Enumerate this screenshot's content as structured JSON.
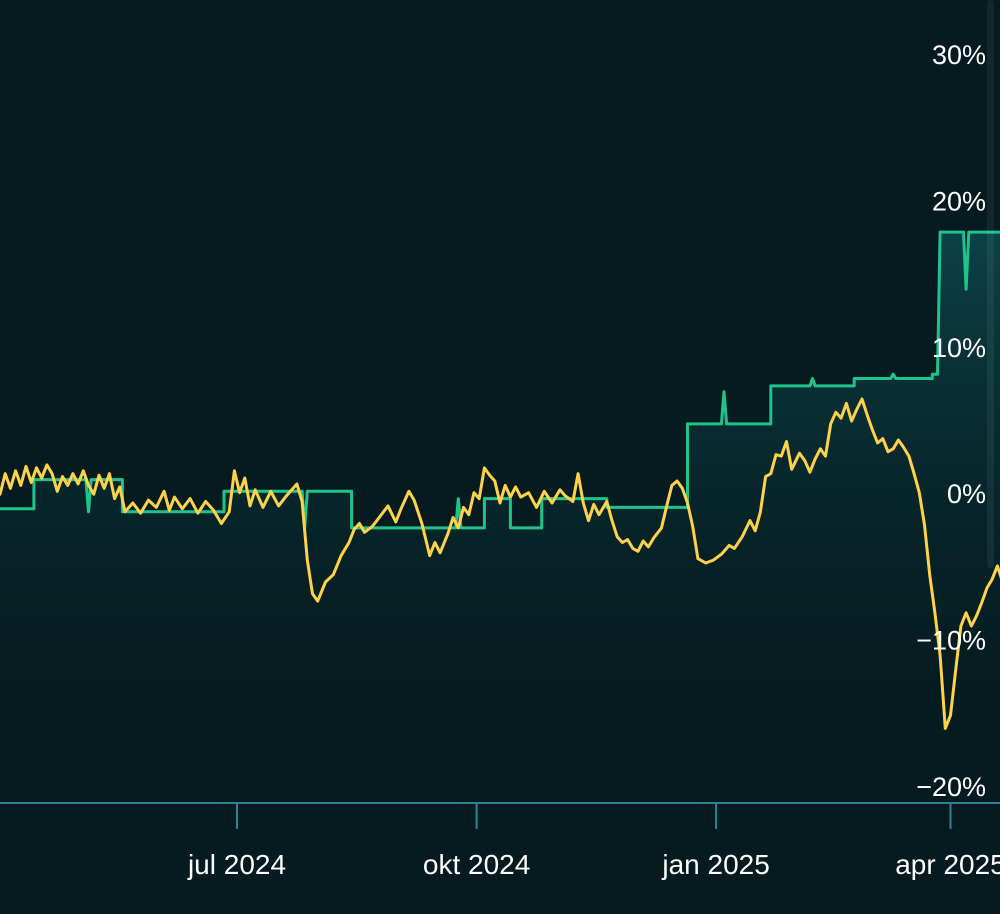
{
  "chart_data": {
    "type": "line",
    "title": "",
    "xlabel": "",
    "ylabel": "",
    "x_range": [
      "2024-04-01",
      "2025-04-20"
    ],
    "ylim": [
      -20,
      30
    ],
    "yticks": [
      30,
      20,
      10,
      0,
      -10,
      -20
    ],
    "ytick_labels": [
      "30%",
      "20%",
      "10%",
      "0%",
      "−10%",
      "−20%"
    ],
    "xticks": [
      "2024-07-01",
      "2024-10-01",
      "2025-01-01",
      "2025-04-01"
    ],
    "xtick_labels": [
      "jul 2024",
      "okt 2024",
      "jan 2025",
      "apr 2025"
    ],
    "grid": false,
    "legend": "none",
    "series": [
      {
        "color": "#1fc48a",
        "shape": "step",
        "fill": true,
        "points": [
          [
            "2024-04-01",
            -1.0
          ],
          [
            "2024-04-14",
            -1.0
          ],
          [
            "2024-04-14",
            1.0
          ],
          [
            "2024-05-04",
            1.0
          ],
          [
            "2024-05-05",
            -1.2
          ],
          [
            "2024-05-06",
            1.0
          ],
          [
            "2024-05-18",
            1.0
          ],
          [
            "2024-05-18",
            -1.2
          ],
          [
            "2024-06-26",
            -1.2
          ],
          [
            "2024-06-26",
            0.2
          ],
          [
            "2024-07-26",
            0.2
          ],
          [
            "2024-07-27",
            -2.3
          ],
          [
            "2024-07-28",
            0.2
          ],
          [
            "2024-08-14",
            0.2
          ],
          [
            "2024-08-14",
            -2.3
          ],
          [
            "2024-09-23",
            -2.3
          ],
          [
            "2024-09-24",
            -0.3
          ],
          [
            "2024-09-25",
            -2.3
          ],
          [
            "2024-10-04",
            -2.3
          ],
          [
            "2024-10-04",
            -0.3
          ],
          [
            "2024-10-14",
            -0.3
          ],
          [
            "2024-10-14",
            -2.3
          ],
          [
            "2024-10-26",
            -2.3
          ],
          [
            "2024-10-26",
            -0.3
          ],
          [
            "2024-11-20",
            -0.3
          ],
          [
            "2024-11-20",
            -0.9
          ],
          [
            "2024-12-21",
            -0.9
          ],
          [
            "2024-12-21",
            4.8
          ],
          [
            "2025-01-03",
            4.8
          ],
          [
            "2025-01-04",
            7.0
          ],
          [
            "2025-01-05",
            4.8
          ],
          [
            "2025-01-22",
            4.8
          ],
          [
            "2025-01-22",
            7.4
          ],
          [
            "2025-02-06",
            7.4
          ],
          [
            "2025-02-07",
            7.9
          ],
          [
            "2025-02-08",
            7.4
          ],
          [
            "2025-02-23",
            7.4
          ],
          [
            "2025-02-23",
            7.9
          ],
          [
            "2025-03-09",
            7.9
          ],
          [
            "2025-03-10",
            8.2
          ],
          [
            "2025-03-11",
            7.9
          ],
          [
            "2025-03-25",
            7.9
          ],
          [
            "2025-03-25",
            8.2
          ],
          [
            "2025-03-27",
            8.2
          ],
          [
            "2025-03-28",
            17.9
          ],
          [
            "2025-04-06",
            17.9
          ],
          [
            "2025-04-07",
            14.0
          ],
          [
            "2025-04-08",
            17.9
          ],
          [
            "2025-04-24",
            17.9
          ],
          [
            "2025-04-24",
            14.0
          ],
          [
            "2025-05-24",
            14.0
          ]
        ]
      },
      {
        "color": "#ffd24a",
        "shape": "line",
        "fill": false,
        "points": [
          [
            "2024-04-01",
            0.0
          ],
          [
            "2024-04-03",
            1.4
          ],
          [
            "2024-04-05",
            0.4
          ],
          [
            "2024-04-07",
            1.6
          ],
          [
            "2024-04-09",
            0.6
          ],
          [
            "2024-04-11",
            1.9
          ],
          [
            "2024-04-13",
            0.8
          ],
          [
            "2024-04-15",
            1.8
          ],
          [
            "2024-04-17",
            1.1
          ],
          [
            "2024-04-19",
            2.0
          ],
          [
            "2024-04-21",
            1.4
          ],
          [
            "2024-04-23",
            0.2
          ],
          [
            "2024-04-25",
            1.2
          ],
          [
            "2024-04-27",
            0.6
          ],
          [
            "2024-04-29",
            1.4
          ],
          [
            "2024-05-01",
            0.7
          ],
          [
            "2024-05-03",
            1.6
          ],
          [
            "2024-05-05",
            0.6
          ],
          [
            "2024-05-07",
            0.0
          ],
          [
            "2024-05-09",
            1.3
          ],
          [
            "2024-05-11",
            0.4
          ],
          [
            "2024-05-13",
            1.4
          ],
          [
            "2024-05-15",
            -0.3
          ],
          [
            "2024-05-17",
            0.5
          ],
          [
            "2024-05-19",
            -1.2
          ],
          [
            "2024-05-22",
            -0.6
          ],
          [
            "2024-05-25",
            -1.3
          ],
          [
            "2024-05-28",
            -0.4
          ],
          [
            "2024-05-31",
            -0.9
          ],
          [
            "2024-06-03",
            0.2
          ],
          [
            "2024-06-05",
            -1.1
          ],
          [
            "2024-06-07",
            -0.2
          ],
          [
            "2024-06-10",
            -1.0
          ],
          [
            "2024-06-13",
            -0.3
          ],
          [
            "2024-06-16",
            -1.3
          ],
          [
            "2024-06-19",
            -0.5
          ],
          [
            "2024-06-22",
            -1.1
          ],
          [
            "2024-06-25",
            -2.0
          ],
          [
            "2024-06-28",
            -1.2
          ],
          [
            "2024-06-30",
            1.6
          ],
          [
            "2024-07-02",
            0.1
          ],
          [
            "2024-07-04",
            1.1
          ],
          [
            "2024-07-06",
            -0.8
          ],
          [
            "2024-07-08",
            0.3
          ],
          [
            "2024-07-11",
            -0.9
          ],
          [
            "2024-07-14",
            0.2
          ],
          [
            "2024-07-17",
            -0.8
          ],
          [
            "2024-07-20",
            -0.1
          ],
          [
            "2024-07-24",
            0.7
          ],
          [
            "2024-07-26",
            -0.5
          ],
          [
            "2024-07-28",
            -4.5
          ],
          [
            "2024-07-30",
            -6.8
          ],
          [
            "2024-08-01",
            -7.3
          ],
          [
            "2024-08-04",
            -6.0
          ],
          [
            "2024-08-07",
            -5.5
          ],
          [
            "2024-08-10",
            -4.2
          ],
          [
            "2024-08-13",
            -3.3
          ],
          [
            "2024-08-15",
            -2.4
          ],
          [
            "2024-08-17",
            -2.0
          ],
          [
            "2024-08-19",
            -2.6
          ],
          [
            "2024-08-22",
            -2.2
          ],
          [
            "2024-08-25",
            -1.5
          ],
          [
            "2024-08-28",
            -0.8
          ],
          [
            "2024-08-31",
            -1.9
          ],
          [
            "2024-09-02",
            -1.0
          ],
          [
            "2024-09-05",
            0.2
          ],
          [
            "2024-09-07",
            -0.4
          ],
          [
            "2024-09-10",
            -2.0
          ],
          [
            "2024-09-13",
            -4.2
          ],
          [
            "2024-09-15",
            -3.3
          ],
          [
            "2024-09-17",
            -4.0
          ],
          [
            "2024-09-20",
            -2.7
          ],
          [
            "2024-09-22",
            -1.6
          ],
          [
            "2024-09-24",
            -2.3
          ],
          [
            "2024-09-26",
            -0.9
          ],
          [
            "2024-09-28",
            -1.4
          ],
          [
            "2024-09-30",
            0.1
          ],
          [
            "2024-10-02",
            -0.3
          ],
          [
            "2024-10-04",
            1.8
          ],
          [
            "2024-10-06",
            1.3
          ],
          [
            "2024-10-08",
            0.9
          ],
          [
            "2024-10-10",
            -0.6
          ],
          [
            "2024-10-12",
            0.6
          ],
          [
            "2024-10-14",
            -0.2
          ],
          [
            "2024-10-16",
            0.5
          ],
          [
            "2024-10-18",
            -0.2
          ],
          [
            "2024-10-21",
            0.1
          ],
          [
            "2024-10-24",
            -0.9
          ],
          [
            "2024-10-27",
            0.2
          ],
          [
            "2024-10-30",
            -0.6
          ],
          [
            "2024-11-02",
            0.3
          ],
          [
            "2024-11-04",
            -0.1
          ],
          [
            "2024-11-07",
            -0.5
          ],
          [
            "2024-11-09",
            1.4
          ],
          [
            "2024-11-11",
            -0.6
          ],
          [
            "2024-11-13",
            -1.8
          ],
          [
            "2024-11-15",
            -0.7
          ],
          [
            "2024-11-17",
            -1.4
          ],
          [
            "2024-11-20",
            -0.5
          ],
          [
            "2024-11-22",
            -1.8
          ],
          [
            "2024-11-24",
            -2.9
          ],
          [
            "2024-11-26",
            -3.3
          ],
          [
            "2024-11-28",
            -3.1
          ],
          [
            "2024-11-30",
            -3.7
          ],
          [
            "2024-12-02",
            -3.9
          ],
          [
            "2024-12-04",
            -3.2
          ],
          [
            "2024-12-06",
            -3.6
          ],
          [
            "2024-12-08",
            -3.0
          ],
          [
            "2024-12-11",
            -2.3
          ],
          [
            "2024-12-13",
            -0.8
          ],
          [
            "2024-12-15",
            0.6
          ],
          [
            "2024-12-17",
            0.9
          ],
          [
            "2024-12-19",
            0.4
          ],
          [
            "2024-12-21",
            -0.6
          ],
          [
            "2024-12-23",
            -2.2
          ],
          [
            "2024-12-25",
            -4.4
          ],
          [
            "2024-12-28",
            -4.7
          ],
          [
            "2024-12-31",
            -4.5
          ],
          [
            "2025-01-03",
            -4.1
          ],
          [
            "2025-01-06",
            -3.5
          ],
          [
            "2025-01-08",
            -3.7
          ],
          [
            "2025-01-11",
            -2.9
          ],
          [
            "2025-01-14",
            -1.8
          ],
          [
            "2025-01-16",
            -2.5
          ],
          [
            "2025-01-18",
            -1.2
          ],
          [
            "2025-01-20",
            1.2
          ],
          [
            "2025-01-22",
            1.4
          ],
          [
            "2025-01-24",
            2.7
          ],
          [
            "2025-01-26",
            2.6
          ],
          [
            "2025-01-28",
            3.6
          ],
          [
            "2025-01-30",
            1.7
          ],
          [
            "2025-02-02",
            2.8
          ],
          [
            "2025-02-04",
            2.3
          ],
          [
            "2025-02-06",
            1.5
          ],
          [
            "2025-02-08",
            2.4
          ],
          [
            "2025-02-10",
            3.1
          ],
          [
            "2025-02-12",
            2.6
          ],
          [
            "2025-02-14",
            4.8
          ],
          [
            "2025-02-16",
            5.6
          ],
          [
            "2025-02-18",
            5.2
          ],
          [
            "2025-02-20",
            6.2
          ],
          [
            "2025-02-22",
            5.0
          ],
          [
            "2025-02-24",
            5.8
          ],
          [
            "2025-02-26",
            6.5
          ],
          [
            "2025-02-28",
            5.4
          ],
          [
            "2025-03-02",
            4.4
          ],
          [
            "2025-03-04",
            3.5
          ],
          [
            "2025-03-06",
            3.8
          ],
          [
            "2025-03-08",
            2.9
          ],
          [
            "2025-03-10",
            3.1
          ],
          [
            "2025-03-12",
            3.7
          ],
          [
            "2025-03-14",
            3.2
          ],
          [
            "2025-03-16",
            2.6
          ],
          [
            "2025-03-18",
            1.4
          ],
          [
            "2025-03-20",
            0.1
          ],
          [
            "2025-03-22",
            -2.1
          ],
          [
            "2025-03-24",
            -5.5
          ],
          [
            "2025-03-26",
            -8.1
          ],
          [
            "2025-03-28",
            -11.0
          ],
          [
            "2025-03-30",
            -16.0
          ],
          [
            "2025-04-01",
            -15.1
          ],
          [
            "2025-04-03",
            -12.0
          ],
          [
            "2025-04-05",
            -9.0
          ],
          [
            "2025-04-07",
            -8.1
          ],
          [
            "2025-04-09",
            -9.0
          ],
          [
            "2025-04-11",
            -8.3
          ],
          [
            "2025-04-13",
            -7.4
          ],
          [
            "2025-04-15",
            -6.4
          ],
          [
            "2025-04-17",
            -5.8
          ],
          [
            "2025-04-19",
            -4.9
          ],
          [
            "2025-04-21",
            -6.0
          ]
        ]
      }
    ]
  }
}
